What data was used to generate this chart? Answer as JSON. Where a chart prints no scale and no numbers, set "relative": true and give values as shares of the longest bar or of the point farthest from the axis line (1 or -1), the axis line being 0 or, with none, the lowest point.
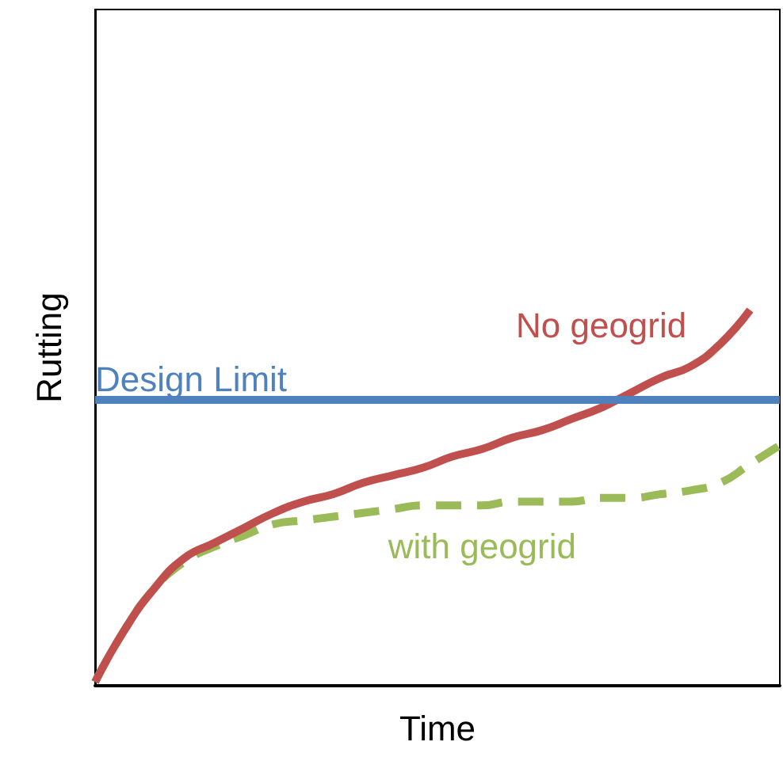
{
  "chart_data": {
    "type": "line",
    "xlabel": "Time",
    "ylabel": "Rutting",
    "relative": true,
    "tick_labels": false,
    "grid": false,
    "marker": "none",
    "categories": [
      null,
      null,
      null,
      null,
      null,
      null,
      null,
      null,
      null,
      null,
      null,
      null,
      null,
      null,
      null,
      null,
      null,
      null,
      null,
      null,
      null,
      null,
      null,
      null
    ],
    "series": [
      {
        "name": "No geogrid",
        "color": "#c0504d",
        "line_style": "solid",
        "values": [
          0.01,
          0.15,
          0.26,
          0.34,
          0.38,
          0.42,
          0.46,
          0.49,
          0.51,
          0.54,
          0.56,
          0.58,
          0.61,
          0.63,
          0.66,
          0.68,
          0.71,
          0.74,
          0.78,
          0.82,
          0.85,
          0.91,
          1,
          null
        ]
      },
      {
        "name": "with geogrid",
        "color": "#9bbb59",
        "line_style": "dashed",
        "values": [
          0.01,
          0.15,
          0.26,
          0.33,
          0.37,
          0.4,
          0.43,
          0.44,
          0.45,
          0.46,
          0.47,
          0.48,
          0.48,
          0.48,
          0.49,
          0.49,
          0.49,
          0.5,
          0.5,
          0.51,
          0.52,
          0.54,
          0.59,
          0.64
        ]
      }
    ],
    "ref_lines": [
      {
        "axis": "y",
        "value": 0.76,
        "label": "Design Limit",
        "color": "#4f81bd"
      }
    ]
  }
}
